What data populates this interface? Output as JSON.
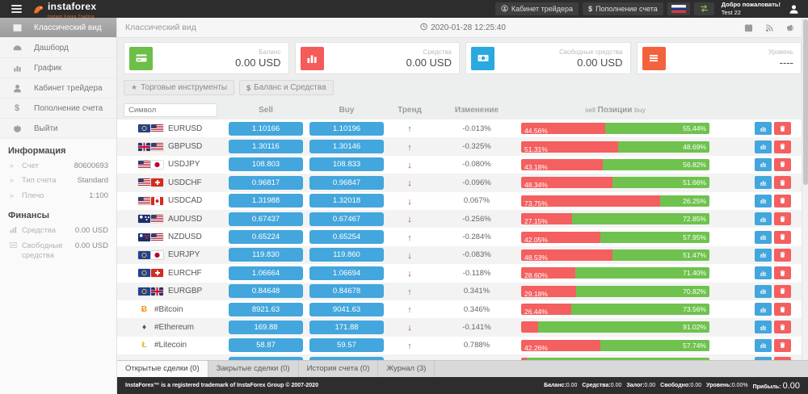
{
  "topbar": {
    "brand": "instaforex",
    "tagline": "Instant Forex Trading",
    "buttons": [
      {
        "slug": "trader-cabinet",
        "icon": "person-circle-icon",
        "label": "Кабинет трейдера"
      },
      {
        "slug": "deposit",
        "icon": "dollar-icon",
        "label": "Пополнение счета"
      }
    ],
    "welcome_title": "Добро пожаловать!",
    "welcome_user": "Test 22"
  },
  "sidebar": {
    "items": [
      {
        "slug": "classic-view",
        "icon": "grid-icon",
        "label": "Классический вид",
        "active": true
      },
      {
        "slug": "dashboard",
        "icon": "dashboard-icon",
        "label": "Дашборд",
        "active": false
      },
      {
        "slug": "chart",
        "icon": "chart-icon",
        "label": "График",
        "active": false
      },
      {
        "slug": "trader-cabinet",
        "icon": "person-icon",
        "label": "Кабинет трейдера",
        "active": false
      },
      {
        "slug": "deposit",
        "icon": "dollar-icon",
        "label": "Пополнение счета",
        "active": false
      },
      {
        "slug": "logout",
        "icon": "power-icon",
        "label": "Выйти",
        "active": false
      }
    ],
    "sections": [
      {
        "header": "Информация",
        "rows": [
          {
            "label": "Счет",
            "value": "80600693",
            "icon": "chevrons-icon"
          },
          {
            "label": "Тип счета",
            "value": "Standard",
            "icon": "chevrons-icon"
          },
          {
            "label": "Плечо",
            "value": "1:100",
            "icon": "chevrons-icon"
          }
        ]
      },
      {
        "header": "Финансы",
        "rows": [
          {
            "label": "Средства",
            "value": "0.00 USD",
            "icon": "funds-icon"
          },
          {
            "label": "Свободные средства",
            "value": "0.00 USD",
            "icon": "free-funds-icon"
          }
        ]
      }
    ]
  },
  "main_header": {
    "title": "Классический вид",
    "timestamp": "2020-01-28 12:25:40"
  },
  "cards": [
    {
      "slug": "balance",
      "label": "Баланс",
      "value": "0.00 USD",
      "color": "#6cbf47",
      "icon": "credit-card-icon"
    },
    {
      "slug": "funds",
      "label": "Средства",
      "value": "0.00 USD",
      "color": "#f45b5b",
      "icon": "bar-chart-icon"
    },
    {
      "slug": "free-funds",
      "label": "Свободные средства",
      "value": "0.00 USD",
      "color": "#2aa8e0",
      "icon": "banknote-icon"
    },
    {
      "slug": "level",
      "label": "Уровень",
      "value": "----",
      "color": "#f4623d",
      "icon": "list-icon"
    }
  ],
  "toolbar": {
    "instruments_label": "Торговые инструменты",
    "funds_label": "Баланс и Средства"
  },
  "table": {
    "symbol_placeholder": "Символ",
    "headers": {
      "sell": "Sell",
      "buy": "Buy",
      "trend": "Тренд",
      "change": "Изменение",
      "pos_sell": "sell",
      "pos": "Позиции",
      "pos_buy": "buy"
    },
    "rows": [
      {
        "symbol": "EURUSD",
        "flags": [
          "eu",
          "us"
        ],
        "sell": "1.10166",
        "buy": "1.10196",
        "trend": "up",
        "change": "-0.013%",
        "sell_pct": 44.56,
        "sell_label": "44.56%",
        "buy_label": "55.44%"
      },
      {
        "symbol": "GBPUSD",
        "flags": [
          "gb",
          "us"
        ],
        "sell": "1.30116",
        "buy": "1.30146",
        "trend": "up",
        "change": "-0.325%",
        "sell_pct": 51.31,
        "sell_label": "51.31%",
        "buy_label": "48.69%"
      },
      {
        "symbol": "USDJPY",
        "flags": [
          "us",
          "jp"
        ],
        "sell": "108.803",
        "buy": "108.833",
        "trend": "down",
        "change": "-0.080%",
        "sell_pct": 43.18,
        "sell_label": "43.18%",
        "buy_label": "56.82%"
      },
      {
        "symbol": "USDCHF",
        "flags": [
          "us",
          "ch"
        ],
        "sell": "0.96817",
        "buy": "0.96847",
        "trend": "down",
        "change": "-0.096%",
        "sell_pct": 48.34,
        "sell_label": "48.34%",
        "buy_label": "51.66%"
      },
      {
        "symbol": "USDCAD",
        "flags": [
          "us",
          "ca"
        ],
        "sell": "1.31988",
        "buy": "1.32018",
        "trend": "down",
        "change": "0.067%",
        "sell_pct": 73.75,
        "sell_label": "73.75%",
        "buy_label": "26.25%"
      },
      {
        "symbol": "AUDUSD",
        "flags": [
          "au",
          "us"
        ],
        "sell": "0.67437",
        "buy": "0.67467",
        "trend": "down",
        "change": "-0.256%",
        "sell_pct": 27.15,
        "sell_label": "27.15%",
        "buy_label": "72.85%"
      },
      {
        "symbol": "NZDUSD",
        "flags": [
          "nz",
          "us"
        ],
        "sell": "0.65224",
        "buy": "0.65254",
        "trend": "up",
        "change": "-0.284%",
        "sell_pct": 42.05,
        "sell_label": "42.05%",
        "buy_label": "57.95%"
      },
      {
        "symbol": "EURJPY",
        "flags": [
          "eu",
          "jp"
        ],
        "sell": "119.830",
        "buy": "119.860",
        "trend": "down",
        "change": "-0.083%",
        "sell_pct": 48.53,
        "sell_label": "48.53%",
        "buy_label": "51.47%"
      },
      {
        "symbol": "EURCHF",
        "flags": [
          "eu",
          "ch"
        ],
        "sell": "1.06664",
        "buy": "1.06694",
        "trend": "down",
        "change": "-0.118%",
        "sell_pct": 28.6,
        "sell_label": "28.60%",
        "buy_label": "71.40%"
      },
      {
        "symbol": "EURGBP",
        "flags": [
          "eu",
          "gb"
        ],
        "sell": "0.84648",
        "buy": "0.84678",
        "trend": "up",
        "change": "0.341%",
        "sell_pct": 29.18,
        "sell_label": "29.18%",
        "buy_label": "70.82%"
      },
      {
        "symbol": "#Bitcoin",
        "coin": "bitcoin",
        "sell": "8921.63",
        "buy": "9041.63",
        "trend": "up",
        "change": "0.346%",
        "sell_pct": 26.44,
        "sell_label": "26.44%",
        "buy_label": "73.56%"
      },
      {
        "symbol": "#Ethereum",
        "coin": "ethereum",
        "sell": "169.88",
        "buy": "171.88",
        "trend": "down",
        "change": "-0.141%",
        "sell_pct": 8.98,
        "sell_label": "",
        "buy_label": "91.02%"
      },
      {
        "symbol": "#Litecoin",
        "coin": "litecoin",
        "sell": "58.87",
        "buy": "59.57",
        "trend": "up",
        "change": "0.788%",
        "sell_pct": 42.26,
        "sell_label": "42.26%",
        "buy_label": "57.74%"
      },
      {
        "symbol": "",
        "partial": true,
        "sell": "",
        "buy": "",
        "trend": "",
        "change": "",
        "sell_pct": 3,
        "sell_label": "",
        "buy_label": ""
      }
    ]
  },
  "tabs": [
    {
      "label": "Открытые сделки (0)",
      "active": true
    },
    {
      "label": "Закрытые сделки (0)",
      "active": false
    },
    {
      "label": "История счета (0)",
      "active": false
    },
    {
      "label": "Журнал (3)",
      "active": false
    }
  ],
  "footer": {
    "copyright": "InstaForex™ is a registered trademark of InstaForex Group © 2007-2020",
    "stats": [
      {
        "label": "Баланс:",
        "value": "0.00"
      },
      {
        "label": "Средства:",
        "value": "0.00"
      },
      {
        "label": "Залог:",
        "value": "0.00"
      },
      {
        "label": "Свободно:",
        "value": "0.00"
      },
      {
        "label": "Уровень:",
        "value": "0.00%"
      },
      {
        "label": "Прибыль:",
        "value": "0.00",
        "big": true
      }
    ]
  }
}
